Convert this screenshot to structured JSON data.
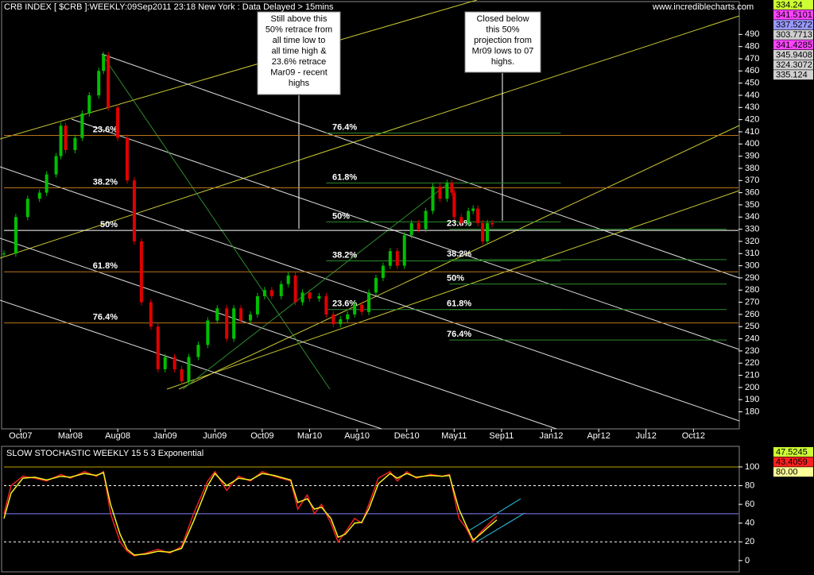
{
  "header": "CRB INDEX [ $CRB ]:WEEKLY:09Sep2011 23:18 New York  : Data Delayed > 15mins",
  "watermark": "www.incrediblecharts.com",
  "callouts": [
    [
      "Still above this",
      "50% retrace from",
      "all time low to",
      "all time high &",
      "23.6% retrace",
      "Mar09 - recent",
      "highs"
    ],
    [
      "Closed below",
      "this 50%",
      "projection from",
      "Mr09 lows to 07",
      "highs."
    ]
  ],
  "readouts": [
    {
      "label": "334.24",
      "color": "#ccff33"
    },
    {
      "label": "341.5101",
      "color": "#ff44ff"
    },
    {
      "label": "337.5272",
      "color": "#9999ff"
    },
    {
      "label": "303.7713",
      "color": "#d0d0d0"
    },
    {
      "label": "341.4285",
      "color": "#ff44ff"
    },
    {
      "label": "345.9408",
      "color": "#d0d0d0"
    },
    {
      "label": "324.3072",
      "color": "#d0d0d0"
    },
    {
      "label": "335.124",
      "color": "#d0d0d0"
    }
  ],
  "chart_data": [
    {
      "type": "candlestick",
      "xlim": [
        0,
        310
      ],
      "xticks": [
        {
          "value": 7,
          "label": "Oct07"
        },
        {
          "value": 28,
          "label": "Mar08"
        },
        {
          "value": 48,
          "label": "Aug08"
        },
        {
          "value": 68,
          "label": "Jan09"
        },
        {
          "value": 89,
          "label": "Jun09"
        },
        {
          "value": 109,
          "label": "Oct09"
        },
        {
          "value": 129,
          "label": "Mar10"
        },
        {
          "value": 149,
          "label": "Aug10"
        },
        {
          "value": 170,
          "label": "Dec10"
        },
        {
          "value": 190,
          "label": "May11"
        },
        {
          "value": 210,
          "label": "Sep11"
        },
        {
          "value": 231,
          "label": "Jan12"
        },
        {
          "value": 251,
          "label": "Apr12"
        },
        {
          "value": 271,
          "label": "Jul12"
        },
        {
          "value": 291,
          "label": "Oct12"
        }
      ],
      "ylim": [
        166,
        515
      ],
      "yticks": [
        180,
        190,
        200,
        210,
        220,
        230,
        240,
        250,
        260,
        270,
        280,
        290,
        300,
        310,
        320,
        330,
        340,
        350,
        360,
        370,
        380,
        390,
        400,
        410,
        420,
        430,
        440,
        450,
        460,
        470,
        480,
        490
      ],
      "up_color": "#00c000",
      "down_color": "#e00000",
      "x": [
        0,
        5,
        10,
        15,
        18,
        22,
        24,
        26,
        30,
        33,
        36,
        40,
        42,
        44,
        48,
        52,
        55,
        58,
        62,
        65,
        68,
        72,
        75,
        78,
        82,
        86,
        90,
        94,
        97,
        100,
        104,
        107,
        110,
        113,
        117,
        120,
        123,
        126,
        129,
        133,
        136,
        139,
        142,
        145,
        148,
        151,
        154,
        157,
        160,
        163,
        166,
        169,
        172,
        175,
        178,
        181,
        184,
        187,
        189,
        190,
        193,
        196,
        198,
        200,
        202,
        204,
        206
      ],
      "values": [
        310,
        340,
        355,
        360,
        375,
        390,
        415,
        395,
        405,
        425,
        440,
        460,
        473,
        430,
        405,
        370,
        320,
        270,
        250,
        215,
        225,
        215,
        205,
        225,
        235,
        255,
        265,
        240,
        265,
        255,
        260,
        275,
        280,
        275,
        285,
        292,
        270,
        278,
        273,
        275,
        260,
        252,
        256,
        260,
        268,
        262,
        278,
        290,
        300,
        312,
        300,
        325,
        335,
        330,
        345,
        365,
        355,
        368,
        360,
        340,
        335,
        345,
        347,
        335,
        320,
        335,
        334
      ],
      "fib_levels": [
        {
          "color": "#b8741a",
          "xlim": [
            0,
            310
          ],
          "levels": [
            {
              "value": 407,
              "label": "23.6%"
            },
            {
              "value": 364,
              "label": "38.2%"
            },
            {
              "value": 329,
              "label": "50%",
              "color": "#ffffff"
            },
            {
              "value": 295,
              "label": "61.8%"
            },
            {
              "value": 253,
              "label": "76.4%"
            }
          ]
        },
        {
          "color": "#2e8b2e",
          "xlim": [
            136,
            235
          ],
          "levels": [
            {
              "value": 409,
              "label": "76.4%"
            },
            {
              "value": 368,
              "label": "61.8%"
            },
            {
              "value": 336,
              "label": "50%"
            },
            {
              "value": 304,
              "label": "38.2%"
            },
            {
              "value": 264,
              "label": "23.6%"
            }
          ]
        },
        {
          "color": "#2e8b2e",
          "xlim": [
            188,
            305
          ],
          "levels": [
            {
              "value": 330,
              "label": "23.6%"
            },
            {
              "value": 305,
              "label": "38.2%"
            },
            {
              "value": 285,
              "label": "50%"
            },
            {
              "value": 264,
              "label": "61.8%"
            },
            {
              "value": 239,
              "label": "76.4%"
            }
          ]
        }
      ]
    },
    {
      "type": "line",
      "title": "SLOW STOCHASTIC WEEKLY 15 5 3 Exponential",
      "xlim": [
        0,
        310
      ],
      "ylim": [
        -12,
        122
      ],
      "yticks": [
        0,
        20,
        40,
        60,
        80,
        100
      ],
      "x": [
        0,
        3,
        8,
        13,
        18,
        24,
        28,
        34,
        39,
        42,
        45,
        49,
        52,
        55,
        60,
        65,
        70,
        75,
        80,
        86,
        89,
        94,
        99,
        104,
        109,
        114,
        121,
        124,
        128,
        131,
        134,
        138,
        141,
        144,
        148,
        151,
        154,
        158,
        163,
        166,
        170,
        174,
        180,
        185,
        188,
        192,
        195,
        198,
        201,
        205,
        208
      ],
      "series": [
        {
          "color": "#ee2020",
          "values": [
            50,
            80,
            90,
            88,
            85,
            92,
            88,
            95,
            90,
            95,
            50,
            20,
            10,
            5,
            8,
            12,
            8,
            15,
            50,
            85,
            95,
            75,
            90,
            85,
            95,
            90,
            85,
            55,
            70,
            50,
            60,
            40,
            20,
            30,
            45,
            40,
            60,
            88,
            95,
            85,
            95,
            88,
            92,
            90,
            92,
            45,
            35,
            20,
            30,
            40,
            47.5
          ]
        },
        {
          "color": "#f0f020",
          "values": [
            45,
            72,
            88,
            89,
            86,
            90,
            89,
            93,
            91,
            94,
            60,
            28,
            12,
            6,
            7,
            10,
            9,
            13,
            42,
            80,
            93,
            80,
            88,
            86,
            93,
            91,
            86,
            62,
            66,
            55,
            57,
            45,
            25,
            28,
            40,
            41,
            55,
            82,
            93,
            88,
            93,
            89,
            91,
            90,
            91,
            55,
            38,
            22,
            28,
            37,
            43.4
          ]
        }
      ],
      "hlines": [
        {
          "value": 100,
          "color": "#c0a000"
        },
        {
          "value": 80,
          "color": "#ffffff",
          "dash": true
        },
        {
          "value": 50,
          "color": "#8080ff"
        },
        {
          "value": 20,
          "color": "#ffffff",
          "dash": true
        }
      ],
      "readouts": [
        {
          "label": "47.5245",
          "color": "#ccff33"
        },
        {
          "label": "43.4059",
          "color": "#ff2020"
        },
        {
          "label": "80.00",
          "color": "#ffff99"
        }
      ]
    }
  ]
}
